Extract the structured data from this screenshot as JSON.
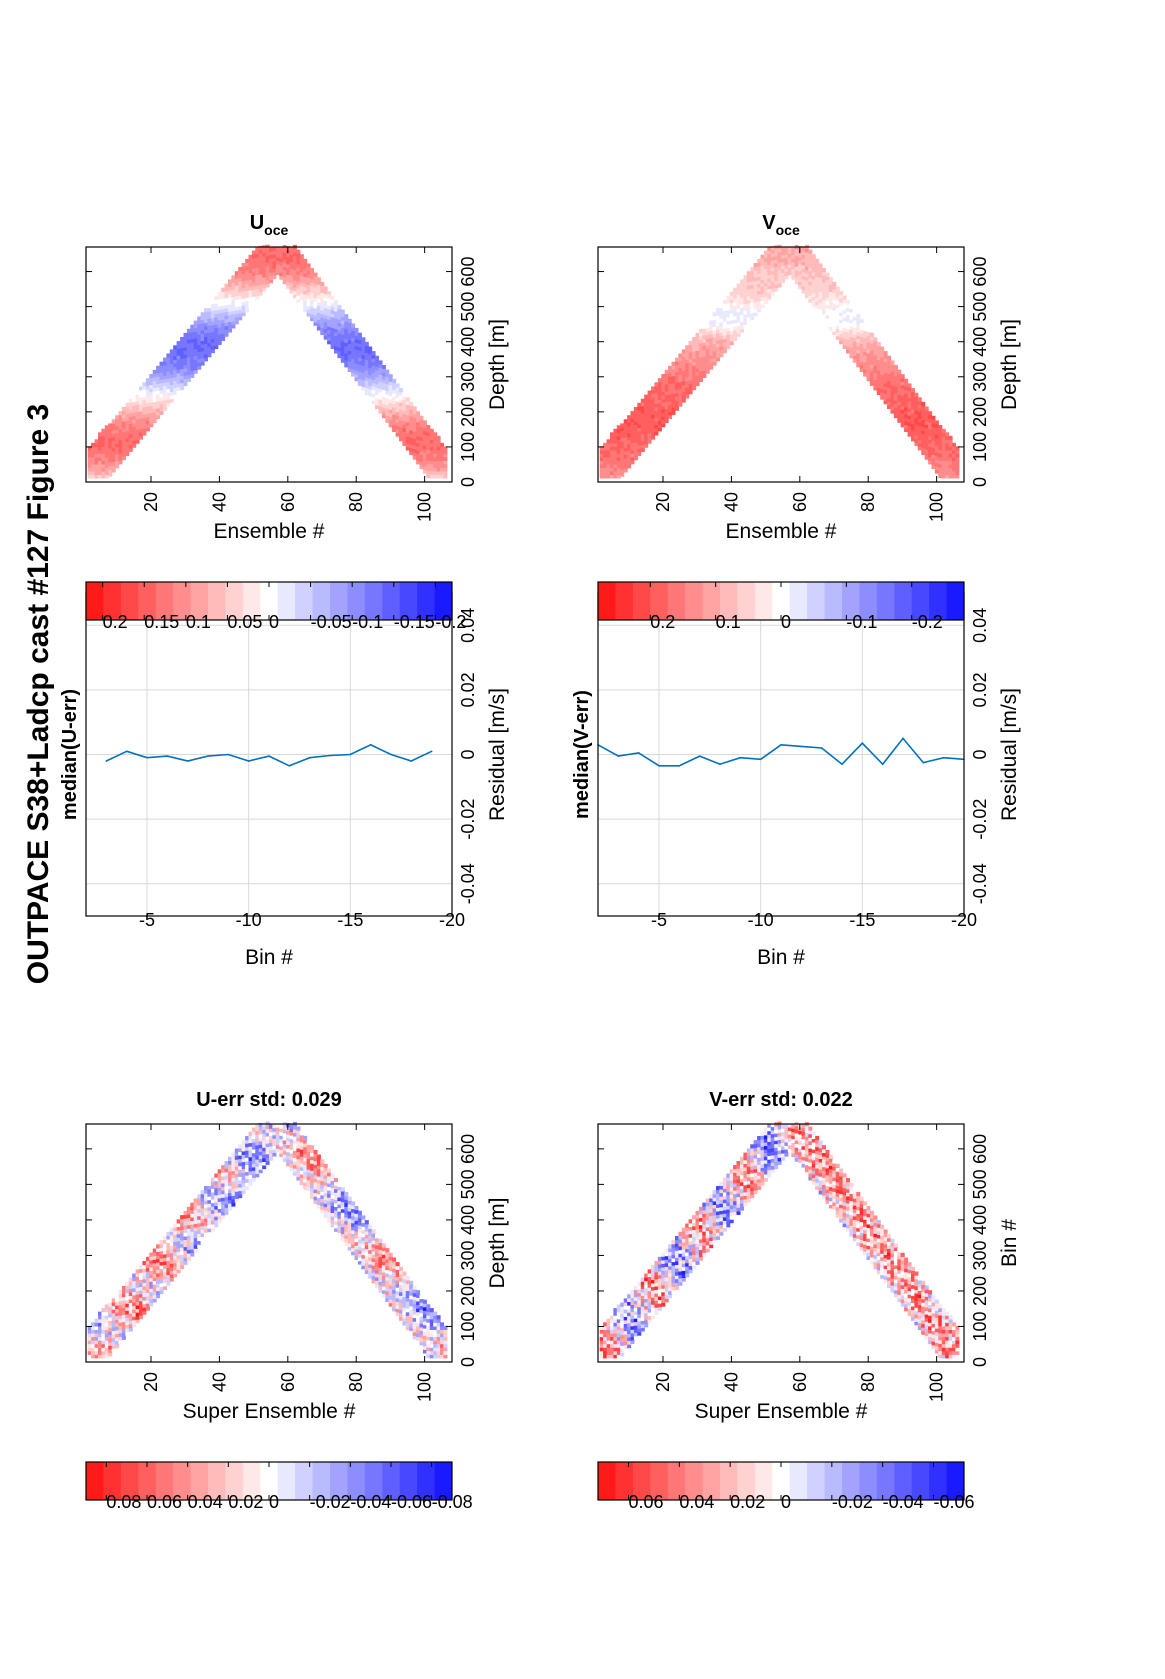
{
  "figure_title": "OUTPACE S38+Ladcp cast #127  Figure 3",
  "colors": {
    "positive": "#ff1a1a",
    "negative": "#1a1aff",
    "residual_line": "#0072bd",
    "grid": "#d9d9d9"
  },
  "chart_data": [
    {
      "id": "u-err",
      "type": "heatmap",
      "title": "U-err std: 0.029",
      "xlabel": "Super Ensemble #",
      "ylabel": "Depth [m]",
      "xlim": [
        1,
        108
      ],
      "ylim": [
        0,
        670
      ],
      "x_ticks": [
        "20",
        "40",
        "60",
        "80",
        "100"
      ],
      "y_ticks": [
        "0",
        "100",
        "200",
        "300",
        "400",
        "500",
        "600"
      ],
      "colorbar": {
        "range": [
          -0.09,
          0.09
        ],
        "ticks": [
          "0.08",
          "0.06",
          "0.04",
          "0.02",
          "0",
          "-0.02",
          "-0.04",
          "-0.06",
          "-0.08"
        ]
      }
    },
    {
      "id": "median-u-err",
      "type": "line",
      "title": "median(U-err)",
      "xlabel": "Residual [m/s]",
      "ylabel": "Bin #",
      "xlim": [
        -0.05,
        0.05
      ],
      "ylim": [
        -2,
        -20
      ],
      "x_ticks": [
        "-0.04",
        "-0.02",
        "0",
        "0.02",
        "0.04"
      ],
      "y_ticks": [
        "-5",
        "-10",
        "-15",
        "-20"
      ],
      "series": [
        {
          "x": [
            -0.002,
            0.001,
            -0.001,
            -0.0005,
            -0.002,
            -0.0005,
            0.0,
            -0.002,
            -0.0005,
            -0.0035,
            -0.001,
            -0.0003,
            0.0,
            0.003,
            0.0,
            -0.002,
            0.001
          ],
          "y": [
            -3,
            -4,
            -5,
            -6,
            -7,
            -8,
            -9,
            -10,
            -11,
            -12,
            -13,
            -14,
            -15,
            -16,
            -17,
            -18,
            -19
          ]
        }
      ]
    },
    {
      "id": "u-oce",
      "type": "heatmap",
      "title": "U",
      "title_subscript": "oce",
      "xlabel": "Ensemble #",
      "ylabel": "Depth [m]",
      "xlim": [
        1,
        108
      ],
      "ylim": [
        0,
        670
      ],
      "x_ticks": [
        "20",
        "40",
        "60",
        "80",
        "100"
      ],
      "y_ticks": [
        "0",
        "100",
        "200",
        "300",
        "400",
        "500",
        "600"
      ],
      "colorbar": {
        "range": [
          -0.22,
          0.22
        ],
        "ticks": [
          "0.2",
          "0.15",
          "0.1",
          "0.05",
          "0",
          "-0.05",
          "-0.1",
          "-0.15",
          "-0.2"
        ]
      }
    },
    {
      "id": "v-err",
      "type": "heatmap",
      "title": "V-err std: 0.022",
      "xlabel": "Super Ensemble #",
      "ylabel": "Bin #",
      "xlim": [
        1,
        108
      ],
      "ylim": [
        0,
        670
      ],
      "x_ticks": [
        "20",
        "40",
        "60",
        "80",
        "100"
      ],
      "y_ticks": [
        "0",
        "100",
        "200",
        "300",
        "400",
        "500",
        "600"
      ],
      "colorbar": {
        "range": [
          -0.072,
          0.072
        ],
        "ticks": [
          "0.06",
          "0.04",
          "0.02",
          "0",
          "-0.02",
          "-0.04",
          "-0.06"
        ]
      }
    },
    {
      "id": "median-v-err",
      "type": "line",
      "title": "median(V-err)",
      "xlabel": "Residual [m/s]",
      "ylabel": "Bin #",
      "xlim": [
        -0.05,
        0.05
      ],
      "ylim": [
        -2,
        -20
      ],
      "x_ticks": [
        "-0.04",
        "-0.02",
        "0",
        "0.02",
        "0.04"
      ],
      "y_ticks": [
        "-5",
        "-10",
        "-15",
        "-20"
      ],
      "series": [
        {
          "x": [
            0.003,
            -0.0005,
            0.0005,
            -0.0035,
            -0.0035,
            -0.0005,
            -0.003,
            -0.001,
            -0.0015,
            0.003,
            0.0025,
            0.002,
            -0.003,
            0.0035,
            -0.003,
            0.005,
            -0.0025,
            -0.001,
            -0.0015
          ],
          "y": [
            -2,
            -3,
            -4,
            -5,
            -6,
            -7,
            -8,
            -9,
            -10,
            -11,
            -12,
            -13,
            -14,
            -15,
            -16,
            -17,
            -18,
            -19,
            -20
          ]
        }
      ]
    },
    {
      "id": "v-oce",
      "type": "heatmap",
      "title": "V",
      "title_subscript": "oce",
      "xlabel": "Ensemble #",
      "ylabel": "Depth [m]",
      "xlim": [
        1,
        108
      ],
      "ylim": [
        0,
        670
      ],
      "x_ticks": [
        "20",
        "40",
        "60",
        "80",
        "100"
      ],
      "y_ticks": [
        "0",
        "100",
        "200",
        "300",
        "400",
        "500",
        "600"
      ],
      "colorbar": {
        "range": [
          -0.28,
          0.28
        ],
        "ticks": [
          "0.2",
          "0.1",
          "0",
          "-0.1",
          "-0.2"
        ]
      }
    }
  ]
}
